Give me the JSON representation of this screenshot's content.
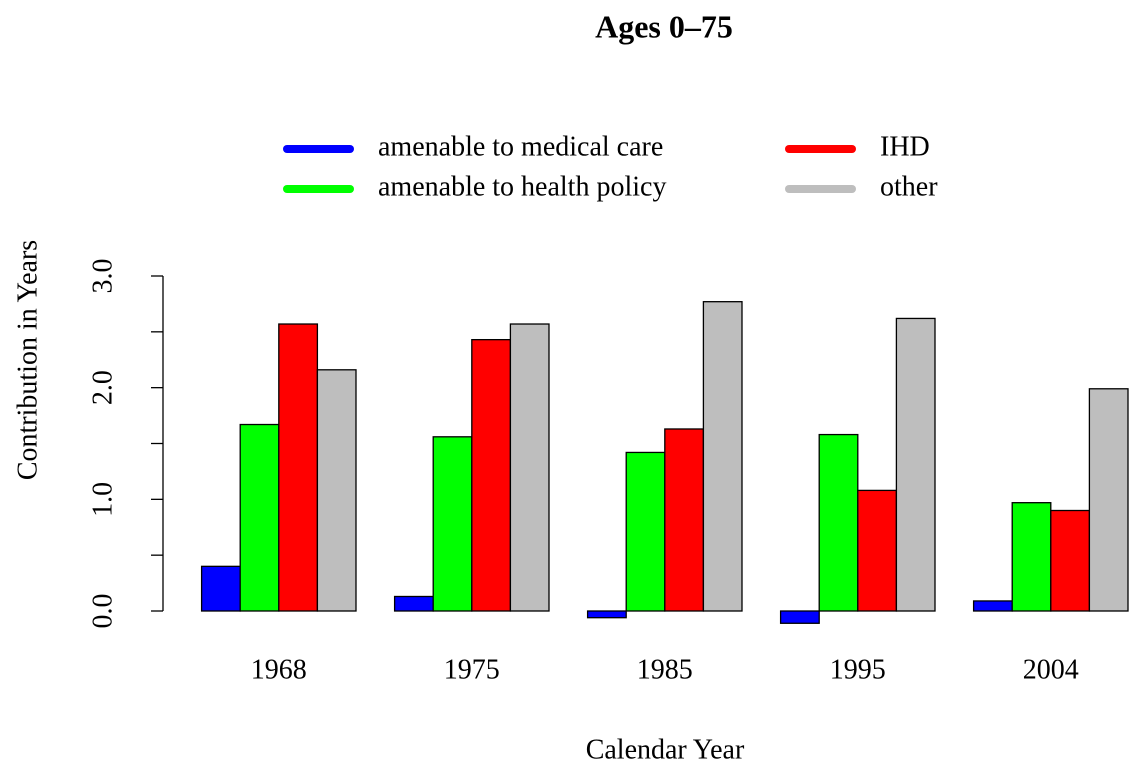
{
  "chart_data": {
    "type": "bar",
    "title": "Ages 0–75",
    "x_label": "Calendar Year",
    "y_label": "Contribution in Years",
    "categories": [
      "1968",
      "1975",
      "1985",
      "1995",
      "2004"
    ],
    "series": [
      {
        "name": "amenable to medical care",
        "color": "#0000ff",
        "values": [
          0.4,
          0.13,
          -0.06,
          -0.11,
          0.09
        ]
      },
      {
        "name": "amenable to health policy",
        "color": "#00ff00",
        "values": [
          1.67,
          1.56,
          1.42,
          1.58,
          0.97
        ]
      },
      {
        "name": "IHD",
        "color": "#ff0000",
        "values": [
          2.57,
          2.43,
          1.63,
          1.08,
          0.9
        ]
      },
      {
        "name": "other",
        "color": "#bebebe",
        "values": [
          2.16,
          2.57,
          2.77,
          2.62,
          1.99
        ]
      }
    ],
    "ylim": [
      0,
      3
    ],
    "yticks": [
      {
        "value": 0,
        "label": "0.0"
      },
      {
        "value": 0.5,
        "label": null
      },
      {
        "value": 1,
        "label": "1.0"
      },
      {
        "value": 1.5,
        "label": null
      },
      {
        "value": 2,
        "label": "2.0"
      },
      {
        "value": 2.5,
        "label": null
      },
      {
        "value": 3,
        "label": "3.0"
      }
    ],
    "legend": "top"
  }
}
